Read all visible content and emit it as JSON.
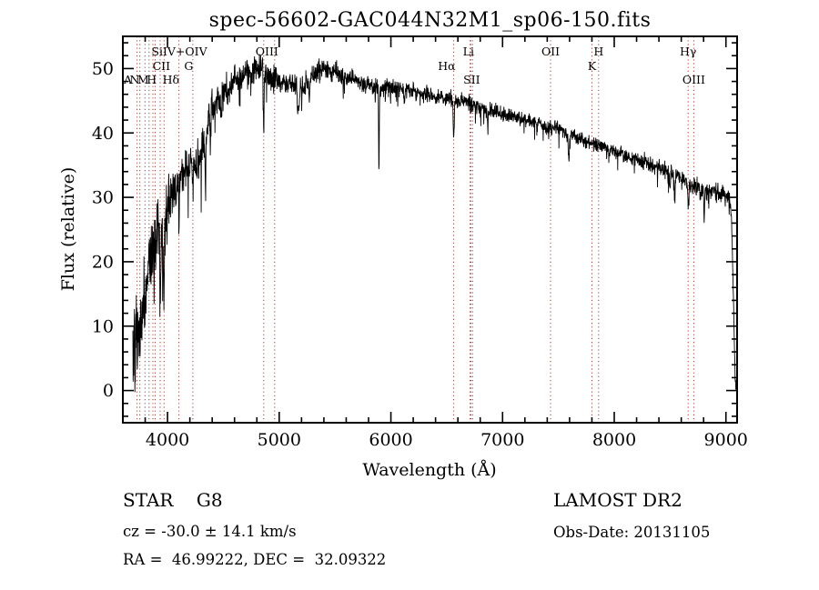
{
  "plot": {
    "axis_color": "#000000",
    "line_color": "#000000",
    "marker_color": "#a83b32"
  },
  "chart_data": {
    "type": "line",
    "title": "spec-56602-GAC044N32M1_sp06-150.fits",
    "xlabel": "Wavelength (Å)",
    "ylabel": "Flux (relative)",
    "xlim": [
      3600,
      9100
    ],
    "ylim": [
      -5,
      55
    ],
    "xticks": [
      4000,
      5000,
      6000,
      7000,
      8000,
      9000
    ],
    "yticks": [
      0,
      10,
      20,
      30,
      40,
      50
    ],
    "x_minor_step": 200,
    "y_minor_step": 2,
    "legend": "none",
    "grid": false,
    "series": [
      {
        "name": "spectrum",
        "x_start": 3690,
        "x_end": 9090,
        "x_step": 2.2,
        "seed": 20131105,
        "continuum_points": [
          [
            3690,
            6
          ],
          [
            3720,
            7
          ],
          [
            3760,
            10
          ],
          [
            3800,
            15
          ],
          [
            3840,
            20
          ],
          [
            3880,
            24
          ],
          [
            3920,
            26
          ],
          [
            3960,
            24
          ],
          [
            4000,
            30
          ],
          [
            4050,
            31
          ],
          [
            4100,
            33
          ],
          [
            4150,
            34
          ],
          [
            4200,
            35
          ],
          [
            4250,
            35
          ],
          [
            4300,
            37
          ],
          [
            4350,
            40
          ],
          [
            4400,
            44
          ],
          [
            4450,
            45
          ],
          [
            4500,
            46
          ],
          [
            4550,
            47
          ],
          [
            4600,
            48
          ],
          [
            4700,
            49
          ],
          [
            4800,
            50
          ],
          [
            4900,
            49
          ],
          [
            5000,
            48
          ],
          [
            5100,
            47.5
          ],
          [
            5200,
            47
          ],
          [
            5300,
            49
          ],
          [
            5400,
            50
          ],
          [
            5500,
            49.5
          ],
          [
            5600,
            48.5
          ],
          [
            5700,
            48
          ],
          [
            5800,
            47.5
          ],
          [
            5900,
            47
          ],
          [
            6000,
            47
          ],
          [
            6100,
            47
          ],
          [
            6200,
            46.5
          ],
          [
            6300,
            46
          ],
          [
            6400,
            45.5
          ],
          [
            6500,
            45.5
          ],
          [
            6600,
            45
          ],
          [
            6700,
            44.5
          ],
          [
            6800,
            44
          ],
          [
            6900,
            43.5
          ],
          [
            7000,
            43
          ],
          [
            7100,
            42.5
          ],
          [
            7200,
            42
          ],
          [
            7300,
            41.5
          ],
          [
            7400,
            41
          ],
          [
            7500,
            40.5
          ],
          [
            7600,
            40
          ],
          [
            7700,
            39
          ],
          [
            7800,
            38.5
          ],
          [
            7900,
            38
          ],
          [
            8000,
            37
          ],
          [
            8100,
            36.5
          ],
          [
            8200,
            36
          ],
          [
            8300,
            35.2
          ],
          [
            8400,
            34.5
          ],
          [
            8500,
            34
          ],
          [
            8600,
            33
          ],
          [
            8700,
            32
          ],
          [
            8800,
            31.2
          ],
          [
            8900,
            31
          ],
          [
            8960,
            30.5
          ],
          [
            9000,
            30.2
          ],
          [
            9040,
            29
          ],
          [
            9055,
            24
          ],
          [
            9070,
            12
          ],
          [
            9082,
            2
          ],
          [
            9088,
            0
          ]
        ],
        "noise_amplitude": [
          [
            3690,
            5.5
          ],
          [
            3780,
            5
          ],
          [
            3880,
            4.5
          ],
          [
            3980,
            3.8
          ],
          [
            4080,
            3.2
          ],
          [
            4200,
            2.8
          ],
          [
            4350,
            2.5
          ],
          [
            4500,
            2.2
          ],
          [
            4700,
            1.9
          ],
          [
            4900,
            1.7
          ],
          [
            5200,
            1.5
          ],
          [
            5600,
            1.3
          ],
          [
            6000,
            1.15
          ],
          [
            6500,
            1.05
          ],
          [
            7000,
            1.0
          ],
          [
            7600,
            1.0
          ],
          [
            8200,
            1.0
          ],
          [
            8700,
            1.1
          ],
          [
            9000,
            1.3
          ]
        ],
        "absorption_features": [
          [
            3934,
            10,
            10
          ],
          [
            3969,
            9,
            10
          ],
          [
            4102,
            8,
            9
          ],
          [
            4227,
            5,
            8
          ],
          [
            4340,
            7,
            9
          ],
          [
            4383,
            5,
            8
          ],
          [
            4481,
            4,
            8
          ],
          [
            4861,
            9,
            8
          ],
          [
            5170,
            4,
            18
          ],
          [
            5270,
            4,
            8
          ],
          [
            5893,
            13,
            7
          ],
          [
            6122,
            3,
            8
          ],
          [
            6563,
            6,
            9
          ],
          [
            6867,
            3,
            10
          ],
          [
            7594,
            4,
            14
          ],
          [
            8498,
            3,
            10
          ],
          [
            8542,
            4,
            10
          ],
          [
            8662,
            4,
            10
          ],
          [
            8805,
            4,
            8
          ]
        ]
      }
    ],
    "spectral_line_markers": {
      "wavelengths": [
        3727,
        3752,
        3798,
        3835,
        3869,
        3889,
        3934,
        3969,
        4102,
        4227,
        4861,
        4959,
        6563,
        6708,
        6717,
        6731,
        7430,
        7800,
        7860,
        8662,
        8712
      ],
      "labels": [
        {
          "text": "ANMH",
          "lam": 3608,
          "row": 2,
          "anchor": "start",
          "squeeze": true
        },
        {
          "text": "CII",
          "lam": 3945,
          "row": 1
        },
        {
          "text": "Hδ",
          "lam": 4030,
          "row": 2
        },
        {
          "text": "SiIV+OIV",
          "lam": 4105,
          "row": 0
        },
        {
          "text": "G",
          "lam": 4190,
          "row": 1
        },
        {
          "text": "OIII",
          "lam": 4890,
          "row": 0
        },
        {
          "text": "Hα",
          "lam": 6500,
          "row": 1
        },
        {
          "text": "SII",
          "lam": 6724,
          "row": 2
        },
        {
          "text": "Li",
          "lam": 6695,
          "row": 0
        },
        {
          "text": "OII",
          "lam": 7430,
          "row": 0
        },
        {
          "text": "K",
          "lam": 7800,
          "row": 1
        },
        {
          "text": "H",
          "lam": 7860,
          "row": 0
        },
        {
          "text": "Hγ",
          "lam": 8662,
          "row": 0
        },
        {
          "text": "OIII",
          "lam": 8712,
          "row": 2
        }
      ]
    }
  },
  "annotations": {
    "class_label": "STAR    G8",
    "survey": "LAMOST DR2",
    "cz": "cz = -30.0 ± 14.1 km/s",
    "obs_date": "Obs-Date: 20131105",
    "radec": "RA =  46.99222, DEC =  32.09322"
  }
}
